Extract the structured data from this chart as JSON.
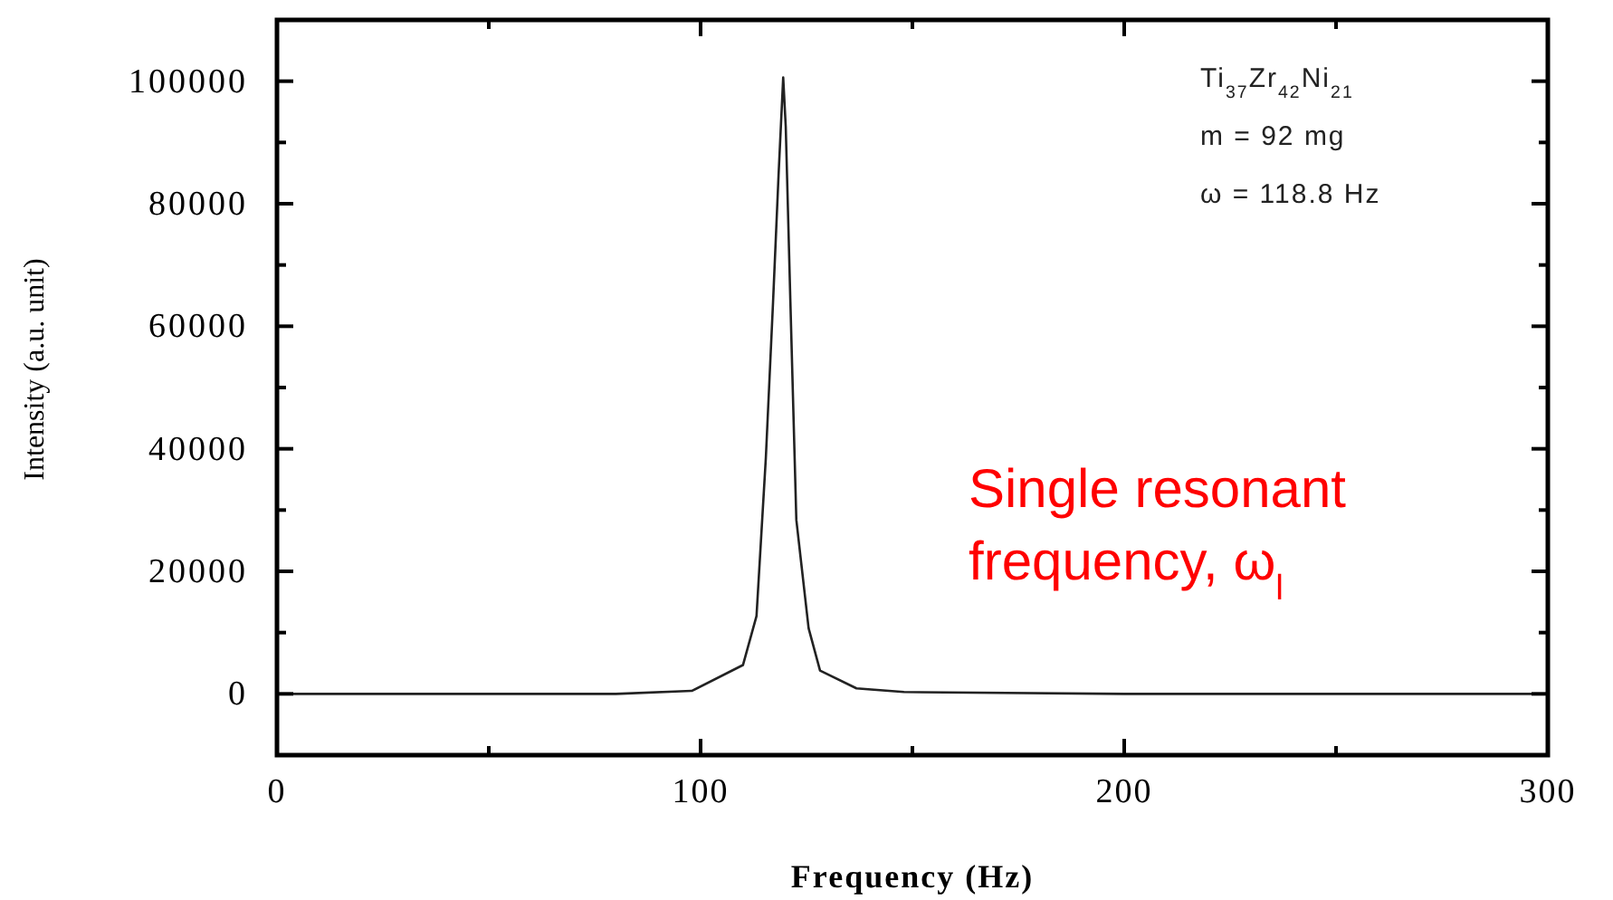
{
  "chart_data": {
    "type": "line",
    "xlabel": "Frequency (Hz)",
    "ylabel": "Intensity (a.u. unit)",
    "x": [
      0,
      40,
      80,
      98,
      110,
      113.2,
      115.4,
      117.1,
      118.4,
      119.5,
      120.1,
      121.2,
      122.6,
      125.5,
      128.2,
      136.8,
      148,
      200,
      300
    ],
    "series": [
      {
        "color": "#222222",
        "values": [
          0,
          0,
          0,
          500,
          4700,
          12700,
          38500,
          63900,
          84600,
          100600,
          92600,
          63900,
          28400,
          10700,
          3800,
          900,
          300,
          0,
          0
        ]
      }
    ],
    "xlim": [
      0,
      300
    ],
    "ylim": [
      -10000,
      110000
    ],
    "xticks": [
      0,
      {
        "value": 50,
        "label": null
      },
      100,
      {
        "value": 150,
        "label": null
      },
      200,
      {
        "value": 250,
        "label": null
      },
      300
    ],
    "yticks": [
      0,
      {
        "value": 10000,
        "label": null
      },
      20000,
      {
        "value": 30000,
        "label": null
      },
      40000,
      {
        "value": 50000,
        "label": null
      },
      60000,
      {
        "value": 70000,
        "label": null
      },
      80000,
      {
        "value": 90000,
        "label": null
      },
      100000
    ],
    "grid": false,
    "line_style": "solid",
    "annotations": [
      "Ti$_{37}$Zr$_{42}$Ni$_{21}$",
      "m = 92 mg",
      "ω = 118.8 Hz",
      "Single resonant frequency, ω$_{l}$"
    ]
  }
}
